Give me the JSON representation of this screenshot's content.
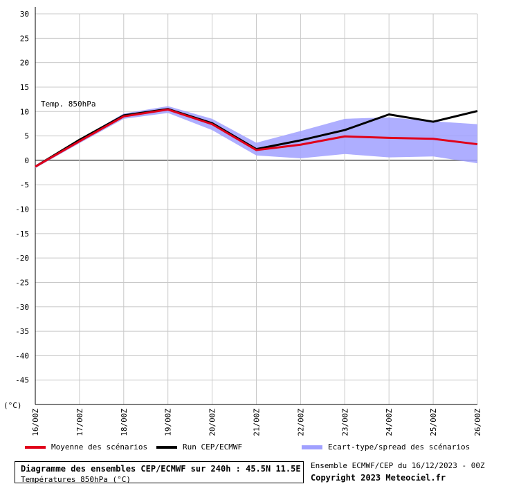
{
  "chart_data": {
    "type": "line",
    "annotation": "Temp. 850hPa",
    "unit_label": "(°C)",
    "x": [
      "16/00Z",
      "17/00Z",
      "18/00Z",
      "19/00Z",
      "20/00Z",
      "21/00Z",
      "22/00Z",
      "23/00Z",
      "24/00Z",
      "25/00Z",
      "26/00Z"
    ],
    "ylim": [
      -50,
      30
    ],
    "yticks": [
      30,
      25,
      20,
      15,
      10,
      5,
      0,
      -5,
      -10,
      -15,
      -20,
      -25,
      -30,
      -35,
      -40,
      -45
    ],
    "grid": true,
    "series": [
      {
        "name": "Moyenne des scénarios",
        "color": "#e0001a",
        "values": [
          -1.3,
          3.9,
          9.0,
          10.4,
          7.4,
          2.1,
          3.2,
          4.9,
          4.6,
          4.4,
          3.3
        ]
      },
      {
        "name": "Run CEP/ECMWF",
        "color": "#000000",
        "values": [
          -1.3,
          4.2,
          9.2,
          10.5,
          7.6,
          2.3,
          4.1,
          6.2,
          9.4,
          7.9,
          10.1
        ]
      }
    ],
    "spread": {
      "name": "Ecart-type/spread des scénarios",
      "color": "#a0a0ff",
      "upper": [
        -1.0,
        4.3,
        9.6,
        11.1,
        8.5,
        3.6,
        6.0,
        8.5,
        8.8,
        8.0,
        7.4
      ],
      "lower": [
        -1.6,
        3.5,
        8.5,
        9.7,
        6.2,
        1.0,
        0.4,
        1.3,
        0.6,
        0.8,
        -0.6
      ]
    }
  },
  "legend": {
    "mean": "Moyenne des scénarios",
    "run": "Run CEP/ECMWF",
    "spread": "Ecart-type/spread des scénarios"
  },
  "footer": {
    "title": "Diagramme des ensembles CEP/ECMWF sur 240h : 45.5N 11.5E",
    "subtitle": "Températures 850hPa (°C)",
    "ensemble": "Ensemble ECMWF/CEP du 16/12/2023 - 00Z",
    "copyright": "Copyright 2023 Meteociel.fr"
  }
}
